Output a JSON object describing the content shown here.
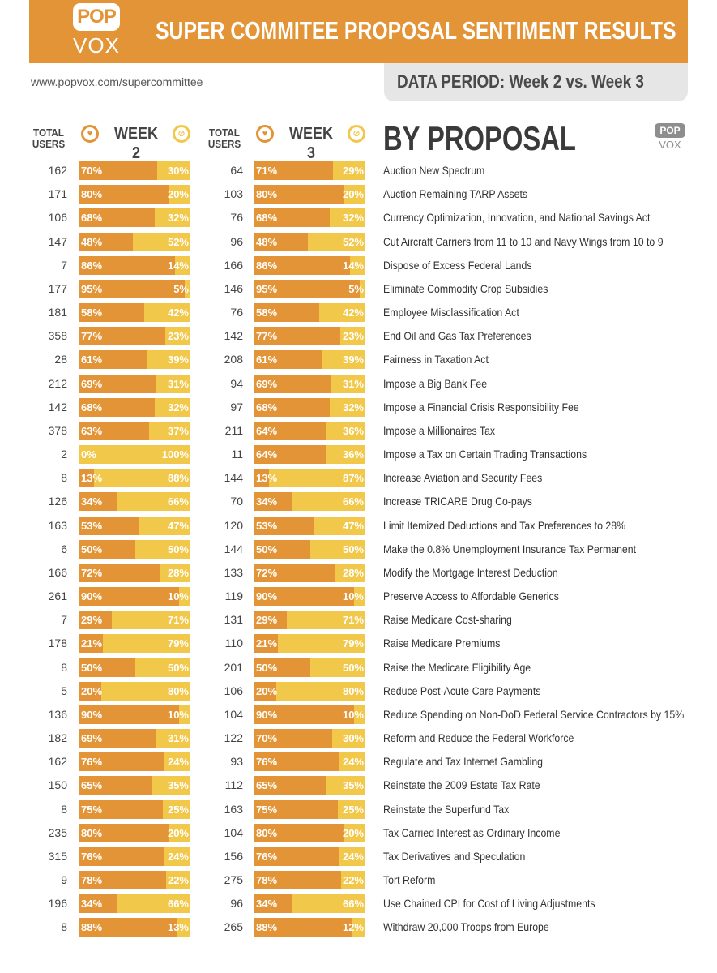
{
  "header": {
    "logo_top": "POP",
    "logo_bottom": "VOX",
    "title": "SUPER COMMITEE PROPOSAL SENTIMENT RESULTS",
    "url": "www.popvox.com/supercommittee",
    "period": "DATA PERIOD: Week 2 vs. Week 3"
  },
  "columns": {
    "total_users": "TOTAL USERS",
    "week2": "WEEK 2",
    "week3": "WEEK 3",
    "by_proposal": "BY PROPOSAL"
  },
  "colors": {
    "support": "#e39436",
    "oppose": "#f2c84b",
    "banner": "#e39436",
    "period_bg": "#e6e6e6"
  },
  "icons": {
    "support": "support-icon",
    "oppose": "oppose-icon"
  },
  "chart_data": {
    "type": "bar",
    "title": "SUPER COMMITEE PROPOSAL SENTIMENT RESULTS",
    "series": [
      {
        "name": "WEEK 2"
      },
      {
        "name": "WEEK 3"
      }
    ],
    "rows": [
      {
        "proposal": "Auction New Spectrum",
        "w2_users": 162,
        "w2_sup": 70,
        "w2_opp": 30,
        "w3_users": 64,
        "w3_sup": 71,
        "w3_opp": 29
      },
      {
        "proposal": "Auction Remaining TARP Assets",
        "w2_users": 171,
        "w2_sup": 80,
        "w2_opp": 20,
        "w3_users": 103,
        "w3_sup": 80,
        "w3_opp": 20
      },
      {
        "proposal": "Currency Optimization, Innovation, and National Savings Act",
        "w2_users": 106,
        "w2_sup": 68,
        "w2_opp": 32,
        "w3_users": 76,
        "w3_sup": 68,
        "w3_opp": 32
      },
      {
        "proposal": "Cut Aircraft Carriers from 11 to 10 and Navy Wings from 10 to 9",
        "w2_users": 147,
        "w2_sup": 48,
        "w2_opp": 52,
        "w3_users": 96,
        "w3_sup": 48,
        "w3_opp": 52
      },
      {
        "proposal": "Dispose of Excess Federal Lands",
        "w2_users": 7,
        "w2_sup": 86,
        "w2_opp": 14,
        "w3_users": 166,
        "w3_sup": 86,
        "w3_opp": 14
      },
      {
        "proposal": "Eliminate Commodity Crop Subsidies",
        "w2_users": 177,
        "w2_sup": 95,
        "w2_opp": 5,
        "w3_users": 146,
        "w3_sup": 95,
        "w3_opp": 5
      },
      {
        "proposal": "Employee Misclassification Act",
        "w2_users": 181,
        "w2_sup": 58,
        "w2_opp": 42,
        "w3_users": 76,
        "w3_sup": 58,
        "w3_opp": 42
      },
      {
        "proposal": "End Oil and Gas Tax Preferences",
        "w2_users": 358,
        "w2_sup": 77,
        "w2_opp": 23,
        "w3_users": 142,
        "w3_sup": 77,
        "w3_opp": 23
      },
      {
        "proposal": "Fairness in Taxation Act",
        "w2_users": 28,
        "w2_sup": 61,
        "w2_opp": 39,
        "w3_users": 208,
        "w3_sup": 61,
        "w3_opp": 39
      },
      {
        "proposal": "Impose a Big Bank Fee",
        "w2_users": 212,
        "w2_sup": 69,
        "w2_opp": 31,
        "w3_users": 94,
        "w3_sup": 69,
        "w3_opp": 31
      },
      {
        "proposal": "Impose a Financial Crisis Responsibility Fee",
        "w2_users": 142,
        "w2_sup": 68,
        "w2_opp": 32,
        "w3_users": 97,
        "w3_sup": 68,
        "w3_opp": 32
      },
      {
        "proposal": "Impose a Millionaires Tax",
        "w2_users": 378,
        "w2_sup": 63,
        "w2_opp": 37,
        "w3_users": 211,
        "w3_sup": 64,
        "w3_opp": 36
      },
      {
        "proposal": "Impose a Tax on Certain Trading Transactions",
        "w2_users": 2,
        "w2_sup": 0,
        "w2_opp": 100,
        "w3_users": 11,
        "w3_sup": 64,
        "w3_opp": 36
      },
      {
        "proposal": "Increase Aviation and Security Fees",
        "w2_users": 8,
        "w2_sup": 13,
        "w2_opp": 88,
        "w3_users": 144,
        "w3_sup": 13,
        "w3_opp": 87
      },
      {
        "proposal": "Increase TRICARE Drug Co-pays",
        "w2_users": 126,
        "w2_sup": 34,
        "w2_opp": 66,
        "w3_users": 70,
        "w3_sup": 34,
        "w3_opp": 66
      },
      {
        "proposal": "Limit Itemized Deductions and Tax Preferences to 28%",
        "w2_users": 163,
        "w2_sup": 53,
        "w2_opp": 47,
        "w3_users": 120,
        "w3_sup": 53,
        "w3_opp": 47
      },
      {
        "proposal": "Make the 0.8% Unemployment Insurance Tax Permanent",
        "w2_users": 6,
        "w2_sup": 50,
        "w2_opp": 50,
        "w3_users": 144,
        "w3_sup": 50,
        "w3_opp": 50
      },
      {
        "proposal": "Modify the Mortgage Interest Deduction",
        "w2_users": 166,
        "w2_sup": 72,
        "w2_opp": 28,
        "w3_users": 133,
        "w3_sup": 72,
        "w3_opp": 28
      },
      {
        "proposal": "Preserve Access to Affordable Generics",
        "w2_users": 261,
        "w2_sup": 90,
        "w2_opp": 10,
        "w3_users": 119,
        "w3_sup": 90,
        "w3_opp": 10
      },
      {
        "proposal": "Raise Medicare Cost-sharing",
        "w2_users": 7,
        "w2_sup": 29,
        "w2_opp": 71,
        "w3_users": 131,
        "w3_sup": 29,
        "w3_opp": 71
      },
      {
        "proposal": "Raise Medicare Premiums",
        "w2_users": 178,
        "w2_sup": 21,
        "w2_opp": 79,
        "w3_users": 110,
        "w3_sup": 21,
        "w3_opp": 79
      },
      {
        "proposal": "Raise the Medicare Eligibility Age",
        "w2_users": 8,
        "w2_sup": 50,
        "w2_opp": 50,
        "w3_users": 201,
        "w3_sup": 50,
        "w3_opp": 50
      },
      {
        "proposal": "Reduce Post-Acute Care Payments",
        "w2_users": 5,
        "w2_sup": 20,
        "w2_opp": 80,
        "w3_users": 106,
        "w3_sup": 20,
        "w3_opp": 80
      },
      {
        "proposal": "Reduce Spending on Non-DoD Federal Service Contractors by 15%",
        "w2_users": 136,
        "w2_sup": 90,
        "w2_opp": 10,
        "w3_users": 104,
        "w3_sup": 90,
        "w3_opp": 10
      },
      {
        "proposal": "Reform and Reduce the Federal Workforce",
        "w2_users": 182,
        "w2_sup": 69,
        "w2_opp": 31,
        "w3_users": 122,
        "w3_sup": 70,
        "w3_opp": 30
      },
      {
        "proposal": "Regulate and Tax Internet Gambling",
        "w2_users": 162,
        "w2_sup": 76,
        "w2_opp": 24,
        "w3_users": 93,
        "w3_sup": 76,
        "w3_opp": 24
      },
      {
        "proposal": "Reinstate the 2009 Estate Tax Rate",
        "w2_users": 150,
        "w2_sup": 65,
        "w2_opp": 35,
        "w3_users": 112,
        "w3_sup": 65,
        "w3_opp": 35
      },
      {
        "proposal": "Reinstate the Superfund Tax",
        "w2_users": 8,
        "w2_sup": 75,
        "w2_opp": 25,
        "w3_users": 163,
        "w3_sup": 75,
        "w3_opp": 25
      },
      {
        "proposal": "Tax Carried Interest as Ordinary Income",
        "w2_users": 235,
        "w2_sup": 80,
        "w2_opp": 20,
        "w3_users": 104,
        "w3_sup": 80,
        "w3_opp": 20
      },
      {
        "proposal": "Tax Derivatives and Speculation",
        "w2_users": 315,
        "w2_sup": 76,
        "w2_opp": 24,
        "w3_users": 156,
        "w3_sup": 76,
        "w3_opp": 24
      },
      {
        "proposal": "Tort Reform",
        "w2_users": 9,
        "w2_sup": 78,
        "w2_opp": 22,
        "w3_users": 275,
        "w3_sup": 78,
        "w3_opp": 22
      },
      {
        "proposal": "Use Chained CPI for Cost of Living Adjustments",
        "w2_users": 196,
        "w2_sup": 34,
        "w2_opp": 66,
        "w3_users": 96,
        "w3_sup": 34,
        "w3_opp": 66
      },
      {
        "proposal": "Withdraw 20,000 Troops from Europe",
        "w2_users": 8,
        "w2_sup": 88,
        "w2_opp": 13,
        "w3_users": 265,
        "w3_sup": 88,
        "w3_opp": 12
      }
    ]
  }
}
